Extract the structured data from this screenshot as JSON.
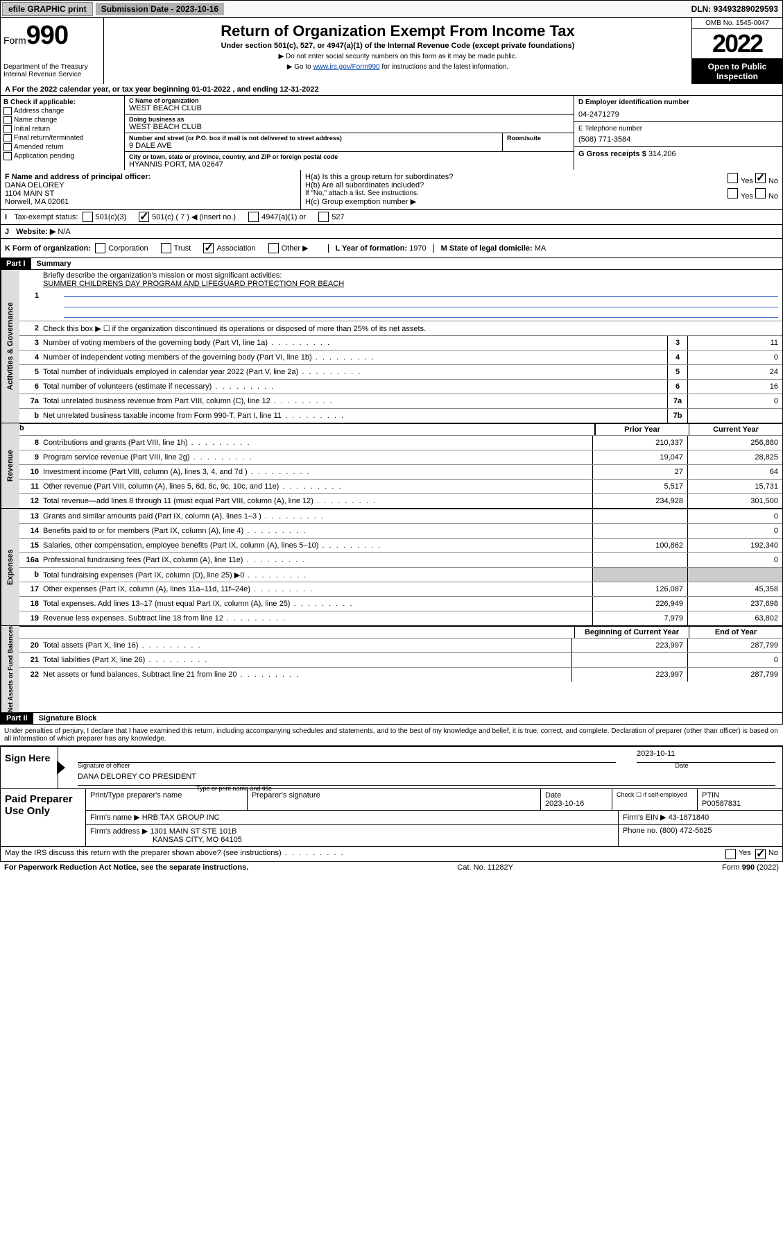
{
  "topbar": {
    "efile": "efile GRAPHIC print",
    "sub_label": "Submission Date - 2023-10-16",
    "dln": "DLN: 93493289029593"
  },
  "header": {
    "form_prefix": "Form",
    "form_no": "990",
    "dept": "Department of the Treasury",
    "irs": "Internal Revenue Service",
    "title": "Return of Organization Exempt From Income Tax",
    "sub1": "Under section 501(c), 527, or 4947(a)(1) of the Internal Revenue Code (except private foundations)",
    "sub2": "▶ Do not enter social security numbers on this form as it may be made public.",
    "sub3_a": "▶ Go to ",
    "sub3_link": "www.irs.gov/Form990",
    "sub3_b": " for instructions and the latest information.",
    "omb": "OMB No. 1545-0047",
    "year": "2022",
    "open": "Open to Public Inspection"
  },
  "lineA": "For the 2022 calendar year, or tax year beginning 01-01-2022   , and ending 12-31-2022",
  "colB": {
    "hdr": "B Check if applicable:",
    "opts": [
      "Address change",
      "Name change",
      "Initial return",
      "Final return/terminated",
      "Amended return",
      "Application pending"
    ]
  },
  "colC": {
    "name_lbl": "C Name of organization",
    "name": "WEST BEACH CLUB",
    "dba_lbl": "Doing business as",
    "dba": "WEST BEACH CLUB",
    "addr_lbl": "Number and street (or P.O. box if mail is not delivered to street address)",
    "room_lbl": "Room/suite",
    "addr": "9 DALE AVE",
    "city_lbl": "City or town, state or province, country, and ZIP or foreign postal code",
    "city": "HYANNIS PORT, MA  02647"
  },
  "colDE": {
    "d_lbl": "D Employer identification number",
    "ein": "04-2471279",
    "e_lbl": "E Telephone number",
    "phone": "(508) 771-3584",
    "g_lbl": "G Gross receipts $",
    "g_val": "314,206"
  },
  "rowF": {
    "f_lbl": "F Name and address of principal officer:",
    "f_name": "DANA DELOREY",
    "f_addr1": "1104 MAIN ST",
    "f_addr2": "Norwell, MA  02061",
    "ha_lbl": "H(a)  Is this a group return for subordinates?",
    "hb_lbl": "H(b)  Are all subordinates included?",
    "hb_note": "If \"No,\" attach a list. See instructions.",
    "hc_lbl": "H(c)  Group exemption number ▶",
    "yes": "Yes",
    "no": "No"
  },
  "rowI": {
    "lbl": "Tax-exempt status:",
    "c3": "501(c)(3)",
    "c7a": "501(c) ( 7 ) ◀ (insert no.)",
    "a1": "4947(a)(1) or",
    "s527": "527"
  },
  "rowJ": {
    "lbl": "Website: ▶",
    "val": "N/A"
  },
  "rowK": {
    "k_lbl": "K Form of organization:",
    "corp": "Corporation",
    "trust": "Trust",
    "assoc": "Association",
    "other": "Other ▶",
    "l_lbl": "L Year of formation:",
    "l_val": "1970",
    "m_lbl": "M State of legal domicile:",
    "m_val": "MA"
  },
  "part1": {
    "hdr": "Part I",
    "title": "Summary",
    "l1_lbl": "Briefly describe the organization's mission or most significant activities:",
    "l1_val": "SUMMER CHILDRENS DAY PROGRAM AND LIFEGUARD PROTECTION FOR BEACH",
    "l2": "Check this box ▶ ☐ if the organization discontinued its operations or disposed of more than 25% of its net assets.",
    "lines_a": [
      {
        "n": "3",
        "t": "Number of voting members of the governing body (Part VI, line 1a)",
        "box": "3",
        "v": "11"
      },
      {
        "n": "4",
        "t": "Number of independent voting members of the governing body (Part VI, line 1b)",
        "box": "4",
        "v": "0"
      },
      {
        "n": "5",
        "t": "Total number of individuals employed in calendar year 2022 (Part V, line 2a)",
        "box": "5",
        "v": "24"
      },
      {
        "n": "6",
        "t": "Total number of volunteers (estimate if necessary)",
        "box": "6",
        "v": "16"
      },
      {
        "n": "7a",
        "t": "Total unrelated business revenue from Part VIII, column (C), line 12",
        "box": "7a",
        "v": "0"
      },
      {
        "n": "b",
        "t": "Net unrelated business taxable income from Form 990-T, Part I, line 11",
        "box": "7b",
        "v": ""
      }
    ],
    "col_prior": "Prior Year",
    "col_curr": "Current Year",
    "rev": [
      {
        "n": "8",
        "t": "Contributions and grants (Part VIII, line 1h)",
        "p": "210,337",
        "c": "256,880"
      },
      {
        "n": "9",
        "t": "Program service revenue (Part VIII, line 2g)",
        "p": "19,047",
        "c": "28,825"
      },
      {
        "n": "10",
        "t": "Investment income (Part VIII, column (A), lines 3, 4, and 7d )",
        "p": "27",
        "c": "64"
      },
      {
        "n": "11",
        "t": "Other revenue (Part VIII, column (A), lines 5, 6d, 8c, 9c, 10c, and 11e)",
        "p": "5,517",
        "c": "15,731"
      },
      {
        "n": "12",
        "t": "Total revenue—add lines 8 through 11 (must equal Part VIII, column (A), line 12)",
        "p": "234,928",
        "c": "301,500"
      }
    ],
    "exp": [
      {
        "n": "13",
        "t": "Grants and similar amounts paid (Part IX, column (A), lines 1–3 )",
        "p": "",
        "c": "0"
      },
      {
        "n": "14",
        "t": "Benefits paid to or for members (Part IX, column (A), line 4)",
        "p": "",
        "c": "0"
      },
      {
        "n": "15",
        "t": "Salaries, other compensation, employee benefits (Part IX, column (A), lines 5–10)",
        "p": "100,862",
        "c": "192,340"
      },
      {
        "n": "16a",
        "t": "Professional fundraising fees (Part IX, column (A), line 11e)",
        "p": "",
        "c": "0"
      },
      {
        "n": "b",
        "t": "Total fundraising expenses (Part IX, column (D), line 25) ▶0",
        "p": "GRAY",
        "c": "GRAY"
      },
      {
        "n": "17",
        "t": "Other expenses (Part IX, column (A), lines 11a–11d, 11f–24e)",
        "p": "126,087",
        "c": "45,358"
      },
      {
        "n": "18",
        "t": "Total expenses. Add lines 13–17 (must equal Part IX, column (A), line 25)",
        "p": "226,949",
        "c": "237,698"
      },
      {
        "n": "19",
        "t": "Revenue less expenses. Subtract line 18 from line 12",
        "p": "7,979",
        "c": "63,802"
      }
    ],
    "na_h1": "Beginning of Current Year",
    "na_h2": "End of Year",
    "na": [
      {
        "n": "20",
        "t": "Total assets (Part X, line 16)",
        "p": "223,997",
        "c": "287,799"
      },
      {
        "n": "21",
        "t": "Total liabilities (Part X, line 26)",
        "p": "",
        "c": "0"
      },
      {
        "n": "22",
        "t": "Net assets or fund balances. Subtract line 21 from line 20",
        "p": "223,997",
        "c": "287,799"
      }
    ],
    "tab_gov": "Activities & Governance",
    "tab_rev": "Revenue",
    "tab_exp": "Expenses",
    "tab_na": "Net Assets or Fund Balances"
  },
  "part2": {
    "hdr": "Part II",
    "title": "Signature Block",
    "decl": "Under penalties of perjury, I declare that I have examined this return, including accompanying schedules and statements, and to the best of my knowledge and belief, it is true, correct, and complete. Declaration of preparer (other than officer) is based on all information of which preparer has any knowledge.",
    "sign": "Sign Here",
    "sig_off": "Signature of officer",
    "date_lbl": "Date",
    "date": "2023-10-11",
    "name": "DANA DELOREY CO PRESIDENT",
    "name_lbl": "Type or print name and title",
    "paid": "Paid Preparer Use Only",
    "pp_name_lbl": "Print/Type preparer's name",
    "pp_sig_lbl": "Preparer's signature",
    "pp_date_lbl": "Date",
    "pp_date": "2023-10-16",
    "pp_chk": "Check ☐ if self-employed",
    "ptin_lbl": "PTIN",
    "ptin": "P00587831",
    "firm_lbl": "Firm's name   ▶",
    "firm": "HRB TAX GROUP INC",
    "ein_lbl": "Firm's EIN ▶",
    "ein": "43-1871840",
    "addr_lbl": "Firm's address ▶",
    "addr1": "1301 MAIN ST STE 101B",
    "addr2": "KANSAS CITY, MO  64105",
    "ph_lbl": "Phone no.",
    "ph": "(800) 472-5625",
    "may": "May the IRS discuss this return with the preparer shown above? (see instructions)"
  },
  "footer": {
    "pra": "For Paperwork Reduction Act Notice, see the separate instructions.",
    "cat": "Cat. No. 11282Y",
    "form": "Form 990 (2022)"
  }
}
